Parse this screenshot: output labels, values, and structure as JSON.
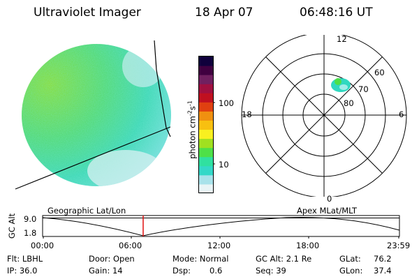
{
  "header": {
    "title": "Ultraviolet Imager",
    "date": "18 Apr 07",
    "time": "06:48:16 UT"
  },
  "colorbar": {
    "label": "photon cm",
    "label_exp1": "-2",
    "label_s": "s",
    "label_exp2": "-1",
    "tick_100": "100",
    "tick_10": "10",
    "colors": [
      "#e8f4f6",
      "#a8e2ea",
      "#34d8c8",
      "#30e0a0",
      "#4ee048",
      "#a0e020",
      "#f8f020",
      "#f8c010",
      "#f09010",
      "#e04010",
      "#c01020",
      "#a01040",
      "#702060",
      "#400040",
      "#10003c"
    ]
  },
  "polar": {
    "ticks": {
      "top": "12",
      "left": "18",
      "right": "6",
      "bottom": "0"
    },
    "rings": [
      "60",
      "70",
      "80"
    ]
  },
  "timeline": {
    "left_title": "Geographic Lat/Lon",
    "right_title": "Apex MLat/MLT",
    "axis_title": "GC Alt",
    "y_top": "9.0",
    "y_bottom": "1.8",
    "x_ticks": [
      "00:00",
      "06:00",
      "12:00",
      "18:00",
      "23:59"
    ]
  },
  "footer": {
    "flt": "Flt: LBHL",
    "ip": "IP: 36.0",
    "door": "Door: Open",
    "gain": "Gain: 14",
    "mode": "Mode: Normal",
    "dsp_label": "Dsp:",
    "dsp_value": "0.6",
    "gc_alt": "GC Alt: 2.1 Re",
    "seq": "Seq: 39",
    "glat_label": "GLat:",
    "glat_value": "76.2",
    "glon_label": "GLon:",
    "glon_value": "37.4"
  }
}
